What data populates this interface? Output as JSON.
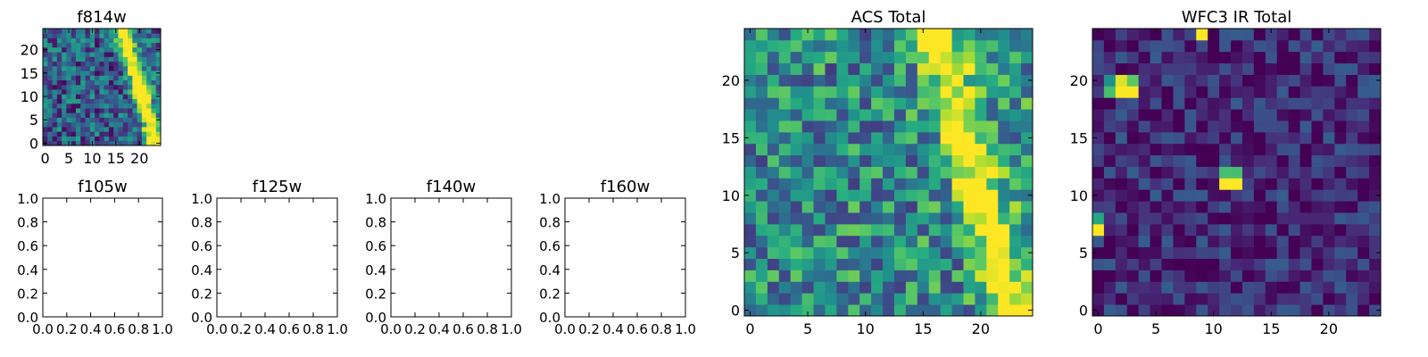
{
  "figure": {
    "background": "#ffffff",
    "colormap": "viridis",
    "colormap_stops": [
      "#440154",
      "#472c7a",
      "#3b518b",
      "#2c718e",
      "#21908d",
      "#27ad81",
      "#5cc863",
      "#aadc32",
      "#fde725"
    ]
  },
  "chart_data": [
    {
      "id": "f814w",
      "type": "heatmap",
      "title": "f814w",
      "xlabel": "",
      "ylabel": "",
      "size": 25,
      "xlim": [
        -0.5,
        24.5
      ],
      "ylim": [
        -0.5,
        24.5
      ],
      "xticks": [
        0,
        5,
        10,
        15,
        20
      ],
      "xtick_labels": [
        "0",
        "5",
        "10",
        "15",
        "20"
      ],
      "yticks": [
        0,
        5,
        10,
        15,
        20
      ],
      "ytick_labels": [
        "0",
        "5",
        "10",
        "15",
        "20"
      ],
      "ridge": [
        [
          0,
          23.2
        ],
        [
          4,
          22.3
        ],
        [
          8,
          21.1
        ],
        [
          12,
          20.2
        ],
        [
          16,
          18.6
        ],
        [
          20,
          17.4
        ],
        [
          24,
          16.4
        ]
      ],
      "ridge_width": 1.2,
      "ridge_strength": 0.9,
      "background_level": 0.3,
      "noise_amplitude": 0.28,
      "hot_pixels": [],
      "noise_seed": 11
    },
    {
      "id": "f105w",
      "type": "empty",
      "title": "f105w",
      "xlim": [
        0,
        1
      ],
      "ylim": [
        0,
        1
      ],
      "xtick_labels": [
        "0.0",
        "0.2",
        "0.4",
        "0.6",
        "0.8",
        "1.0"
      ],
      "ytick_labels": [
        "0.0",
        "0.2",
        "0.4",
        "0.6",
        "0.8",
        "1.0"
      ]
    },
    {
      "id": "f125w",
      "type": "empty",
      "title": "f125w",
      "xlim": [
        0,
        1
      ],
      "ylim": [
        0,
        1
      ],
      "xtick_labels": [
        "0.0",
        "0.2",
        "0.4",
        "0.6",
        "0.8",
        "1.0"
      ],
      "ytick_labels": [
        "0.0",
        "0.2",
        "0.4",
        "0.6",
        "0.8",
        "1.0"
      ]
    },
    {
      "id": "f140w",
      "type": "empty",
      "title": "f140w",
      "xlim": [
        0,
        1
      ],
      "ylim": [
        0,
        1
      ],
      "xtick_labels": [
        "0.0",
        "0.2",
        "0.4",
        "0.6",
        "0.8",
        "1.0"
      ],
      "ytick_labels": [
        "0.0",
        "0.2",
        "0.4",
        "0.6",
        "0.8",
        "1.0"
      ]
    },
    {
      "id": "f160w",
      "type": "empty",
      "title": "f160w",
      "xlim": [
        0,
        1
      ],
      "ylim": [
        0,
        1
      ],
      "xtick_labels": [
        "0.0",
        "0.2",
        "0.4",
        "0.6",
        "0.8",
        "1.0"
      ],
      "ytick_labels": [
        "0.0",
        "0.2",
        "0.4",
        "0.6",
        "0.8",
        "1.0"
      ]
    },
    {
      "id": "acs-total",
      "type": "heatmap",
      "title": "ACS Total",
      "xlabel": "",
      "ylabel": "",
      "size": 25,
      "xlim": [
        -0.5,
        24.5
      ],
      "ylim": [
        -0.5,
        24.5
      ],
      "xticks": [
        0,
        5,
        10,
        15,
        20
      ],
      "xtick_labels": [
        "0",
        "5",
        "10",
        "15",
        "20"
      ],
      "yticks": [
        0,
        5,
        10,
        15,
        20
      ],
      "ytick_labels": [
        "0",
        "5",
        "10",
        "15",
        "20"
      ],
      "ridge": [
        [
          0,
          22.5
        ],
        [
          4,
          21.5
        ],
        [
          8,
          20.4
        ],
        [
          12,
          19.4
        ],
        [
          16,
          18.2
        ],
        [
          20,
          17.1
        ],
        [
          24,
          16.3
        ]
      ],
      "ridge_width": 1.4,
      "ridge_strength": 0.55,
      "background_level": 0.48,
      "noise_amplitude": 0.3,
      "hot_pixels": [],
      "noise_seed": 23
    },
    {
      "id": "wfc3-ir-total",
      "type": "heatmap",
      "title": "WFC3 IR Total",
      "xlabel": "",
      "ylabel": "",
      "size": 25,
      "xlim": [
        -0.5,
        24.5
      ],
      "ylim": [
        -0.5,
        24.5
      ],
      "xticks": [
        0,
        5,
        10,
        15,
        20
      ],
      "xtick_labels": [
        "0",
        "5",
        "10",
        "15",
        "20"
      ],
      "yticks": [
        0,
        5,
        10,
        15,
        20
      ],
      "ytick_labels": [
        "0",
        "5",
        "10",
        "15",
        "20"
      ],
      "ridge": [],
      "ridge_width": 1,
      "ridge_strength": 0,
      "background_level": 0.12,
      "noise_amplitude": 0.18,
      "hot_pixels": [
        [
          9,
          24,
          1.0
        ],
        [
          2,
          20,
          0.95
        ],
        [
          3,
          19,
          1.0
        ],
        [
          2,
          19,
          1.0
        ],
        [
          1,
          20,
          0.5
        ],
        [
          1,
          19,
          0.7
        ],
        [
          3,
          20,
          0.75
        ],
        [
          11,
          12,
          0.7
        ],
        [
          12,
          12,
          0.7
        ],
        [
          11,
          11,
          1.0
        ],
        [
          12,
          11,
          1.0
        ],
        [
          0,
          8,
          0.6
        ],
        [
          0,
          7,
          1.0
        ]
      ],
      "noise_seed": 41
    }
  ]
}
